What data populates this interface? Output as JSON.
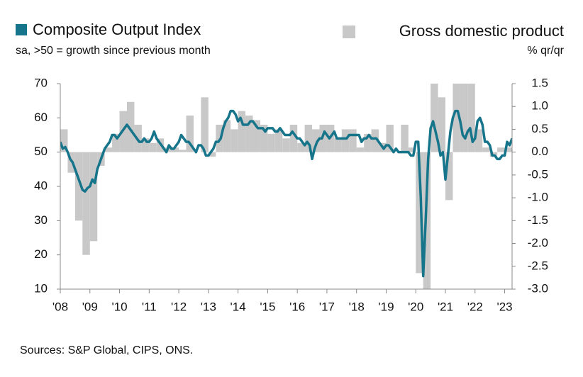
{
  "chart_data": {
    "type": "line",
    "subtitle": "sa, >50 = growth since previous month",
    "y2_label": "% qr/qr",
    "source": "Sources: S&P Global, CIPS, ONS.",
    "xlim": [
      2008,
      2023.25
    ],
    "xticks": [
      {
        "value": 2008,
        "label": "'08"
      },
      {
        "value": 2009,
        "label": "'09"
      },
      {
        "value": 2010,
        "label": "'10"
      },
      {
        "value": 2011,
        "label": "'11"
      },
      {
        "value": 2012,
        "label": "'12"
      },
      {
        "value": 2013,
        "label": "'13"
      },
      {
        "value": 2014,
        "label": "'14"
      },
      {
        "value": 2015,
        "label": "'15"
      },
      {
        "value": 2016,
        "label": "'16"
      },
      {
        "value": 2017,
        "label": "'17"
      },
      {
        "value": 2018,
        "label": "'18"
      },
      {
        "value": 2019,
        "label": "'19"
      },
      {
        "value": 2020,
        "label": "'20"
      },
      {
        "value": 2021,
        "label": "'21"
      },
      {
        "value": 2022,
        "label": "'22"
      },
      {
        "value": 2023,
        "label": "'23"
      }
    ],
    "ylim": [
      10,
      70
    ],
    "yticks": [
      10,
      20,
      30,
      40,
      50,
      60,
      70
    ],
    "y2lim": [
      -3,
      1.5
    ],
    "y2ticks": [
      1.5,
      {
        "value": 1,
        "label": "1.0"
      },
      0.5,
      {
        "value": 0,
        "label": "0.0"
      },
      -0.5,
      {
        "value": -1,
        "label": "-1.0"
      },
      -1.5,
      {
        "value": -2,
        "label": "-2.0"
      },
      -2.5,
      {
        "value": -3,
        "label": "-3.0"
      }
    ],
    "series": [
      {
        "name": "Composite Output Index",
        "color": "#16758a",
        "x": [
          2008,
          2008.083,
          2008.167,
          2008.25,
          2008.333,
          2008.417,
          2008.5,
          2008.583,
          2008.667,
          2008.75,
          2008.833,
          2008.917,
          2009,
          2009.083,
          2009.167,
          2009.25,
          2009.333,
          2009.417,
          2009.5,
          2009.583,
          2009.667,
          2009.75,
          2009.833,
          2009.917,
          2010,
          2010.083,
          2010.167,
          2010.25,
          2010.333,
          2010.417,
          2010.5,
          2010.583,
          2010.667,
          2010.75,
          2010.833,
          2010.917,
          2011,
          2011.083,
          2011.167,
          2011.25,
          2011.333,
          2011.417,
          2011.5,
          2011.583,
          2011.667,
          2011.75,
          2011.833,
          2011.917,
          2012,
          2012.083,
          2012.167,
          2012.25,
          2012.333,
          2012.417,
          2012.5,
          2012.583,
          2012.667,
          2012.75,
          2012.833,
          2012.917,
          2013,
          2013.083,
          2013.167,
          2013.25,
          2013.333,
          2013.417,
          2013.5,
          2013.583,
          2013.667,
          2013.75,
          2013.833,
          2013.917,
          2014,
          2014.083,
          2014.167,
          2014.25,
          2014.333,
          2014.417,
          2014.5,
          2014.583,
          2014.667,
          2014.75,
          2014.833,
          2014.917,
          2015,
          2015.083,
          2015.167,
          2015.25,
          2015.333,
          2015.417,
          2015.5,
          2015.583,
          2015.667,
          2015.75,
          2015.833,
          2015.917,
          2016,
          2016.083,
          2016.167,
          2016.25,
          2016.333,
          2016.417,
          2016.5,
          2016.583,
          2016.667,
          2016.75,
          2016.833,
          2016.917,
          2017,
          2017.083,
          2017.167,
          2017.25,
          2017.333,
          2017.417,
          2017.5,
          2017.583,
          2017.667,
          2017.75,
          2017.833,
          2017.917,
          2018,
          2018.083,
          2018.167,
          2018.25,
          2018.333,
          2018.417,
          2018.5,
          2018.583,
          2018.667,
          2018.75,
          2018.833,
          2018.917,
          2019,
          2019.083,
          2019.167,
          2019.25,
          2019.333,
          2019.417,
          2019.5,
          2019.583,
          2019.667,
          2019.75,
          2019.833,
          2019.917,
          2020,
          2020.083,
          2020.167,
          2020.25,
          2020.333,
          2020.417,
          2020.5,
          2020.583,
          2020.667,
          2020.75,
          2020.833,
          2020.917,
          2021,
          2021.083,
          2021.167,
          2021.25,
          2021.333,
          2021.417,
          2021.5,
          2021.583,
          2021.667,
          2021.75,
          2021.833,
          2021.917,
          2022,
          2022.083,
          2022.167,
          2022.25,
          2022.333,
          2022.417,
          2022.5,
          2022.583,
          2022.667,
          2022.75,
          2022.833,
          2022.917,
          2023,
          2023.083,
          2023.167,
          2023.25
        ],
        "values": [
          53,
          51,
          51.5,
          50,
          48,
          47,
          45,
          43,
          41,
          39,
          38.5,
          39.5,
          40,
          42,
          41,
          45,
          47,
          49,
          51,
          52,
          53,
          55,
          55,
          54,
          55,
          56,
          57,
          58,
          57,
          56,
          55,
          54,
          53,
          53,
          54,
          53,
          53,
          54,
          56,
          54,
          53,
          52,
          51,
          50,
          52,
          51,
          51,
          52,
          53,
          55,
          54,
          53,
          53,
          52,
          51,
          50,
          52,
          52,
          51,
          49,
          49,
          50,
          51,
          53,
          53,
          54,
          57,
          59,
          60,
          62,
          62,
          61,
          59,
          60,
          58,
          58,
          58,
          59,
          59,
          58,
          57,
          57,
          57,
          56,
          57,
          57,
          57,
          56,
          56,
          57,
          56,
          55,
          55,
          55,
          56,
          55,
          54,
          54,
          53,
          52,
          53,
          52,
          48,
          51,
          53,
          54,
          54,
          56,
          55,
          54,
          55,
          56,
          54,
          54,
          54,
          54,
          54,
          55,
          55,
          55,
          55,
          55,
          53,
          54,
          54,
          55,
          54,
          54,
          54,
          53,
          52,
          51,
          52,
          52,
          51,
          50,
          51,
          50,
          50,
          50,
          50,
          50,
          49,
          49,
          53,
          53,
          37,
          13.8,
          30,
          48,
          57,
          59,
          56,
          53,
          49,
          50,
          42,
          49,
          56,
          60,
          62,
          62,
          59,
          55,
          54,
          56,
          57,
          53,
          54,
          59,
          60,
          58,
          53,
          53,
          52,
          49,
          49,
          48,
          48,
          49,
          49,
          53,
          52,
          54
        ]
      },
      {
        "name": "Gross domestic product",
        "color": "#c8c8c8",
        "type": "bar",
        "axis": "y2",
        "x": [
          2008,
          2008.25,
          2008.5,
          2008.75,
          2009,
          2009.25,
          2009.5,
          2009.75,
          2010,
          2010.25,
          2010.5,
          2010.75,
          2011,
          2011.25,
          2011.5,
          2011.75,
          2012,
          2012.25,
          2012.5,
          2012.75,
          2013,
          2013.25,
          2013.5,
          2013.75,
          2014,
          2014.25,
          2014.5,
          2014.75,
          2015,
          2015.25,
          2015.5,
          2015.75,
          2016,
          2016.25,
          2016.5,
          2016.75,
          2017,
          2017.25,
          2017.5,
          2017.75,
          2018,
          2018.25,
          2018.5,
          2018.75,
          2019,
          2019.25,
          2019.5,
          2019.75,
          2020,
          2020.25,
          2020.5,
          2020.75,
          2021,
          2021.25,
          2021.5,
          2021.75,
          2022,
          2022.25,
          2022.5,
          2022.75,
          2023
        ],
        "values": [
          0.5,
          -0.45,
          -1.5,
          -2.25,
          -1.95,
          -0.3,
          0.1,
          0.4,
          0.9,
          1.1,
          0.6,
          0.3,
          0.2,
          0.3,
          0.1,
          0.1,
          0.05,
          0.8,
          0.0,
          1.2,
          -0.1,
          0.6,
          0.7,
          0.5,
          0.9,
          0.8,
          0.7,
          0.6,
          0.4,
          0.5,
          0.3,
          0.6,
          0.2,
          0.6,
          0.5,
          0.6,
          0.6,
          0.3,
          0.5,
          0.5,
          0.1,
          0.4,
          0.5,
          0.2,
          0.6,
          0.0,
          0.6,
          0.1,
          -2.65,
          -3.0,
          1.5,
          1.2,
          -1.05,
          1.5,
          1.5,
          1.5,
          0.5,
          0.1,
          -0.1,
          0.1,
          0.1
        ]
      }
    ]
  }
}
